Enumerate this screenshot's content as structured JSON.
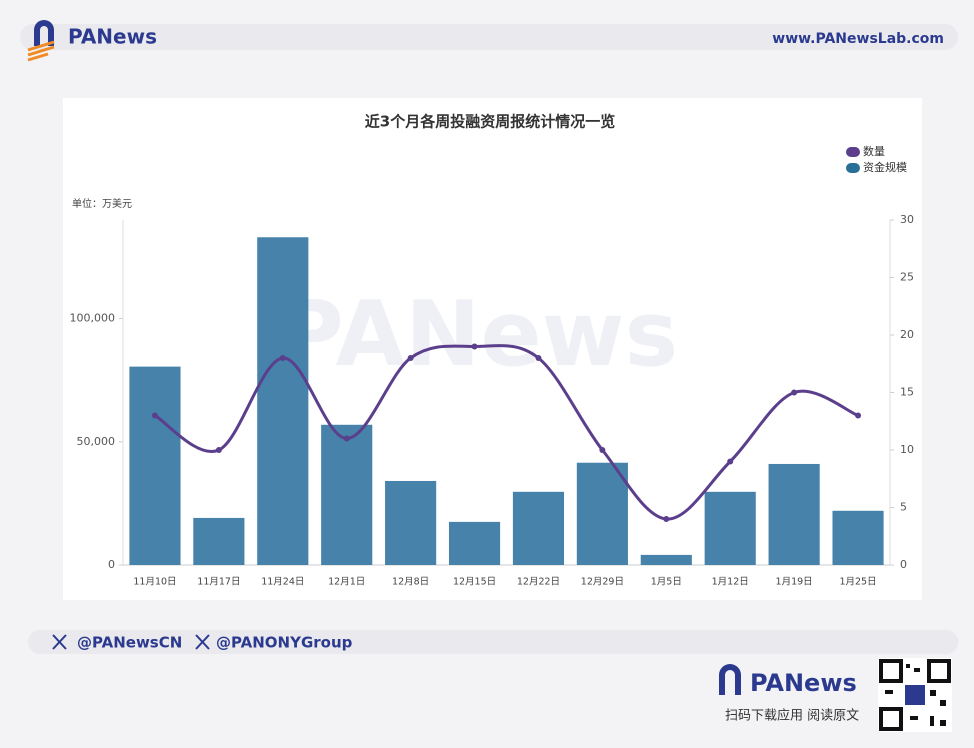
{
  "header": {
    "brand": "PANews",
    "url": "www.PANewsLab.com"
  },
  "chart_data": {
    "type": "combo",
    "title": "近3个月各周投融资周报统计情况一览",
    "unit_label": "单位：万美元",
    "watermark": "PANews",
    "categories": [
      "11月10日",
      "11月17日",
      "11月24日",
      "12月1日",
      "12月8日",
      "12月15日",
      "12月22日",
      "12月29日",
      "1月5日",
      "1月12日",
      "1月19日",
      "1月25日"
    ],
    "series": [
      {
        "name": "数量",
        "type": "line",
        "axis": "y2",
        "color": "#5b3f8c",
        "values": [
          13,
          10,
          18,
          11,
          18,
          19,
          18,
          10,
          4,
          9,
          15,
          13
        ]
      },
      {
        "name": "资金规模",
        "type": "bar",
        "color": "#4682a9",
        "legend_color": "#2a6f97",
        "values": [
          80500,
          19100,
          133000,
          56900,
          34100,
          17500,
          29700,
          41500,
          4100,
          29700,
          41000,
          22000
        ]
      }
    ],
    "ylim": [
      0,
      140000
    ],
    "yticks": [
      0,
      {
        "value": 50000,
        "label": "50,000"
      },
      {
        "value": 100000,
        "label": "100,000"
      }
    ],
    "y2lim": [
      0,
      30
    ],
    "y2ticks": [
      0,
      5,
      10,
      15,
      20,
      25,
      30
    ],
    "legend": "top-right"
  },
  "footer": {
    "handles": [
      "@PANewsCN",
      "@PANONYGroup"
    ],
    "brand": "PANews",
    "caption": "扫码下载应用  阅读原文"
  }
}
